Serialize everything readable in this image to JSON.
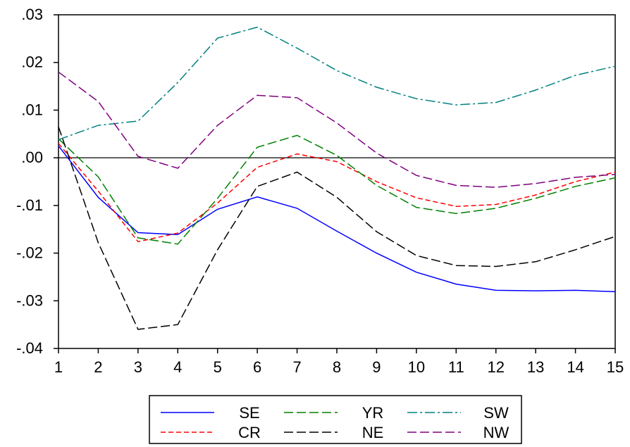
{
  "chart_data": {
    "type": "line",
    "title": "",
    "xlabel": "",
    "ylabel": "",
    "x": [
      1,
      2,
      3,
      4,
      5,
      6,
      7,
      8,
      9,
      10,
      11,
      12,
      13,
      14,
      15
    ],
    "xlim": [
      1,
      15
    ],
    "ylim": [
      -0.04,
      0.03
    ],
    "yticks": [
      ".03",
      ".02",
      ".01",
      ".00",
      "-.01",
      "-.02",
      "-.03",
      "-.04"
    ],
    "ytick_values": [
      0.03,
      0.02,
      0.01,
      0.0,
      -0.01,
      -0.02,
      -0.03,
      -0.04
    ],
    "xticks": [
      "1",
      "2",
      "3",
      "4",
      "5",
      "6",
      "7",
      "8",
      "9",
      "10",
      "11",
      "12",
      "13",
      "14",
      "15"
    ],
    "zero_line": true,
    "grid": false,
    "legend_position": "bottom",
    "series": [
      {
        "name": "SE",
        "color": "#0000ff",
        "dash": "solid",
        "values": [
          0.0025,
          -0.0083,
          -0.0157,
          -0.0161,
          -0.0108,
          -0.0082,
          -0.0106,
          -0.0154,
          -0.02,
          -0.024,
          -0.0265,
          -0.0278,
          -0.0279,
          -0.0278,
          -0.0281
        ]
      },
      {
        "name": "CR",
        "color": "#ff0000",
        "dash": "dash",
        "values": [
          0.003,
          -0.007,
          -0.0176,
          -0.0158,
          -0.0095,
          -0.002,
          0.0008,
          -0.0008,
          -0.005,
          -0.0084,
          -0.0102,
          -0.0098,
          -0.0078,
          -0.005,
          -0.003
        ]
      },
      {
        "name": "YR",
        "color": "#008000",
        "dash": "longdash",
        "values": [
          0.004,
          -0.004,
          -0.0168,
          -0.0181,
          -0.0085,
          0.0022,
          0.0047,
          0.0005,
          -0.0058,
          -0.0104,
          -0.0117,
          -0.0106,
          -0.0085,
          -0.006,
          -0.0042
        ]
      },
      {
        "name": "NE",
        "color": "#000000",
        "dash": "longdash",
        "values": [
          0.0065,
          -0.0178,
          -0.036,
          -0.035,
          -0.0193,
          -0.006,
          -0.003,
          -0.0083,
          -0.0155,
          -0.0205,
          -0.0226,
          -0.0228,
          -0.0218,
          -0.0193,
          -0.0165
        ]
      },
      {
        "name": "SW",
        "color": "#008080",
        "dash": "dashdot",
        "values": [
          0.0038,
          0.0068,
          0.0077,
          0.0158,
          0.0251,
          0.0274,
          0.023,
          0.0183,
          0.0148,
          0.0124,
          0.0111,
          0.0116,
          0.0142,
          0.0173,
          0.0192
        ]
      },
      {
        "name": "NW",
        "color": "#800080",
        "dash": "longdash",
        "values": [
          0.018,
          0.0118,
          0.0003,
          -0.0022,
          0.0068,
          0.0131,
          0.0126,
          0.0073,
          0.001,
          -0.0037,
          -0.0058,
          -0.0062,
          -0.0054,
          -0.0041,
          -0.0035
        ]
      }
    ]
  }
}
